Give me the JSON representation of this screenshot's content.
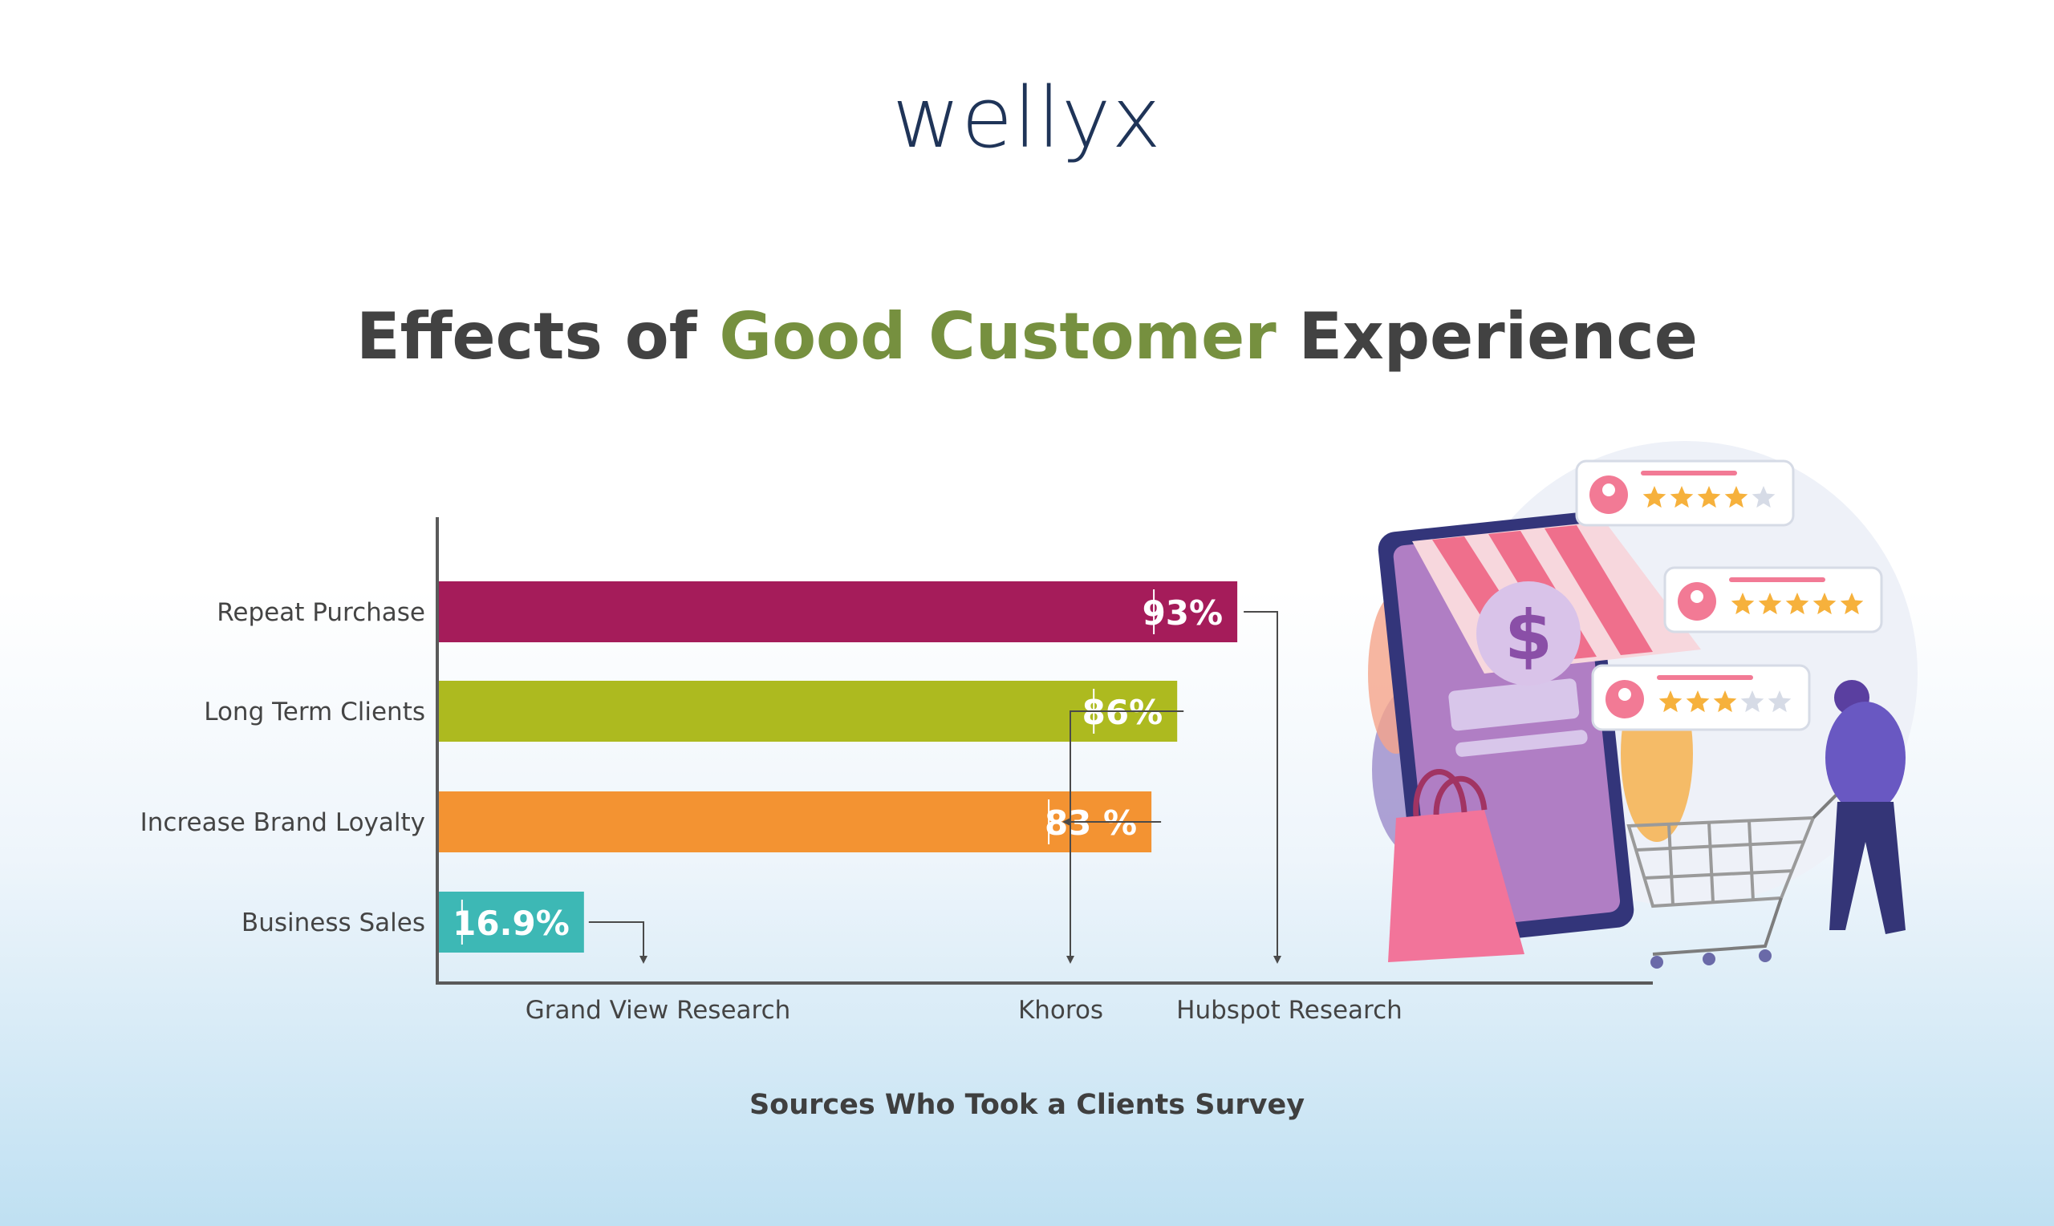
{
  "brand": {
    "logo_text": "wellyx"
  },
  "title": {
    "part1": "Effects of ",
    "highlight": "Good Customer",
    "part2": " Experience"
  },
  "footer": {
    "caption": "Sources Who Took a Clients Survey"
  },
  "colors": {
    "title_highlight": "#76903f",
    "axis": "#5a5a5a"
  },
  "chart_data": {
    "type": "bar",
    "orientation": "horizontal",
    "title": "Effects of Good Customer Experience",
    "xlabel": "Sources Who Took a Clients Survey",
    "ylabel": "",
    "xlim": [
      0,
      100
    ],
    "categories": [
      "Repeat Purchase",
      "Long Term Clients",
      "Increase Brand Loyalty",
      "Business Sales"
    ],
    "values": [
      93,
      86,
      83,
      16.9
    ],
    "value_labels": [
      "93%",
      "86%",
      "83 %",
      "16.9%"
    ],
    "bar_colors": [
      "#a51c5a",
      "#adba1f",
      "#f39332",
      "#3db8b5"
    ],
    "sources": [
      "Hubspot Research",
      "Khoros",
      "Khoros",
      "Grand View Research"
    ],
    "source_labels": [
      "Grand View Research",
      "Khoros",
      "Hubspot Research"
    ],
    "grid": false,
    "legend": "none"
  },
  "illustration": {
    "icons": [
      "shopping-tablet-icon",
      "dollar-coin-icon",
      "shopping-bag-icon",
      "shopping-cart-icon",
      "shopper-person-icon",
      "review-card-icon"
    ],
    "review_cards": [
      {
        "stars": 4,
        "of": 5
      },
      {
        "stars": 5,
        "of": 5
      },
      {
        "stars": 3,
        "of": 5
      }
    ],
    "coin_symbol": "$"
  }
}
